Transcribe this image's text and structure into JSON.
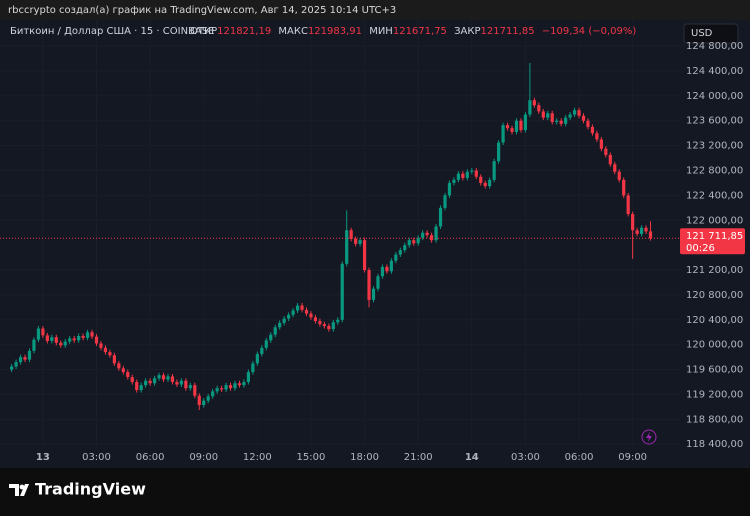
{
  "caption": "rbccrypto создал(а) график на TradingView.com, Авг 14, 2025 10:14 UTC+3",
  "brand": "TradingView",
  "chart_data": {
    "type": "candlestick",
    "symbol": "Биткоин / Доллар США · 15 · COINBASE",
    "legend": {
      "open_label": "ОТКР",
      "open": "121821,19",
      "high_label": "МАКС",
      "high": "121983,91",
      "low_label": "МИН",
      "low": "121671,75",
      "close_label": "ЗАКР",
      "close": "121711,85",
      "change": "−109,34 (−0,09%)"
    },
    "currency": "USD",
    "last_price_label": "121 711,85",
    "countdown": "00:26",
    "up_color": "#089981",
    "down_color": "#f23645",
    "grid": true,
    "xlim": [
      -2.4,
      35.65
    ],
    "ylim": [
      118050,
      124930
    ],
    "xticks": [
      {
        "value": 0,
        "label": "13"
      },
      {
        "value": 3,
        "label": "03:00"
      },
      {
        "value": 6,
        "label": "06:00"
      },
      {
        "value": 9,
        "label": "09:00"
      },
      {
        "value": 12,
        "label": "12:00"
      },
      {
        "value": 15,
        "label": "15:00"
      },
      {
        "value": 18,
        "label": "18:00"
      },
      {
        "value": 21,
        "label": "21:00"
      },
      {
        "value": 24,
        "label": "14"
      },
      {
        "value": 27,
        "label": "03:00"
      },
      {
        "value": 30,
        "label": "06:00"
      },
      {
        "value": 33,
        "label": "09:00"
      }
    ],
    "yticks": [
      {
        "value": 124800,
        "label": "124 800,00"
      },
      {
        "value": 124400,
        "label": "124 400,00"
      },
      {
        "value": 124000,
        "label": "124 000,00"
      },
      {
        "value": 123600,
        "label": "123 600,00"
      },
      {
        "value": 123200,
        "label": "123 200,00"
      },
      {
        "value": 122800,
        "label": "122 800,00"
      },
      {
        "value": 122400,
        "label": "122 400,00"
      },
      {
        "value": 122000,
        "label": "122 000,00"
      },
      {
        "value": 121200,
        "label": "121 200,00"
      },
      {
        "value": 120800,
        "label": "120 800,00"
      },
      {
        "value": 120400,
        "label": "120 400,00"
      },
      {
        "value": 120000,
        "label": "120 000,00"
      },
      {
        "value": 119600,
        "label": "119 600,00"
      },
      {
        "value": 119200,
        "label": "119 200,00"
      },
      {
        "value": 118800,
        "label": "118 800,00"
      },
      {
        "value": 118400,
        "label": "118 400,00"
      }
    ],
    "x": [
      -1.75,
      -1.5,
      -1.25,
      -1,
      -0.75,
      -0.5,
      -0.25,
      0,
      0.25,
      0.5,
      0.75,
      1,
      1.25,
      1.5,
      1.75,
      2,
      2.25,
      2.5,
      2.75,
      3,
      3.25,
      3.5,
      3.75,
      4,
      4.25,
      4.5,
      4.75,
      5,
      5.25,
      5.5,
      5.75,
      6,
      6.25,
      6.5,
      6.75,
      7,
      7.25,
      7.5,
      7.75,
      8,
      8.25,
      8.5,
      8.75,
      9,
      9.25,
      9.5,
      9.75,
      10,
      10.25,
      10.5,
      10.75,
      11,
      11.25,
      11.5,
      11.75,
      12,
      12.25,
      12.5,
      12.75,
      13,
      13.25,
      13.5,
      13.75,
      14,
      14.25,
      14.5,
      14.75,
      15,
      15.25,
      15.5,
      15.75,
      16,
      16.25,
      16.5,
      16.75,
      17,
      17.25,
      17.5,
      17.75,
      18,
      18.25,
      18.5,
      18.75,
      19,
      19.25,
      19.5,
      19.75,
      20,
      20.25,
      20.5,
      20.75,
      21,
      21.25,
      21.5,
      21.75,
      22,
      22.25,
      22.5,
      22.75,
      23,
      23.25,
      23.5,
      23.75,
      24,
      24.25,
      24.5,
      24.75,
      25,
      25.25,
      25.5,
      25.75,
      26,
      26.25,
      26.5,
      26.75,
      27,
      27.25,
      27.5,
      27.75,
      28,
      28.25,
      28.5,
      28.75,
      29,
      29.25,
      29.5,
      29.75,
      30,
      30.25,
      30.5,
      30.75,
      31,
      31.25,
      31.5,
      31.75,
      32,
      32.25,
      32.5,
      32.75,
      33,
      33.25,
      33.5,
      33.75,
      34
    ],
    "open": [
      119600,
      119650,
      119720,
      119800,
      119760,
      119900,
      120080,
      120260,
      120150,
      120060,
      120120,
      120030,
      119990,
      120050,
      120100,
      120070,
      120140,
      120110,
      120200,
      120130,
      120020,
      119950,
      119880,
      119830,
      119700,
      119620,
      119560,
      119480,
      119400,
      119270,
      119350,
      119420,
      119380,
      119460,
      119510,
      119440,
      119490,
      119400,
      119360,
      119420,
      119300,
      119350,
      119180,
      119030,
      119100,
      119170,
      119250,
      119300,
      119280,
      119350,
      119300,
      119380,
      119350,
      119400,
      119560,
      119700,
      119850,
      119950,
      120070,
      120160,
      120280,
      120350,
      120420,
      120480,
      120550,
      120630,
      120560,
      120500,
      120440,
      120380,
      120330,
      120300,
      120250,
      120360,
      120400,
      121300,
      121840,
      121700,
      121620,
      121680,
      121200,
      120720,
      120900,
      121100,
      121250,
      121180,
      121350,
      121450,
      121520,
      121600,
      121680,
      121630,
      121720,
      121800,
      121760,
      121680,
      121900,
      122200,
      122400,
      122600,
      122650,
      122750,
      122680,
      122780,
      122800,
      122700,
      122600,
      122550,
      122650,
      122950,
      123250,
      123530,
      123480,
      123420,
      123600,
      123450,
      123700,
      123930,
      123850,
      123750,
      123650,
      123720,
      123580,
      123600,
      123550,
      123650,
      123700,
      123770,
      123680,
      123600,
      123500,
      123400,
      123300,
      123150,
      123050,
      122900,
      122780,
      122650,
      122400,
      122100,
      121840,
      121780,
      121880,
      121821.19
    ],
    "high": [
      119690,
      119760,
      119840,
      119840,
      119940,
      120120,
      120300,
      120300,
      120190,
      120160,
      120160,
      120070,
      120090,
      120140,
      120140,
      120180,
      120180,
      120240,
      120240,
      120170,
      120060,
      119990,
      119920,
      119870,
      119740,
      119660,
      119600,
      119520,
      119440,
      119390,
      119460,
      119460,
      119500,
      119550,
      119550,
      119530,
      119530,
      119440,
      119460,
      119460,
      119390,
      119390,
      119220,
      119140,
      119210,
      119290,
      119340,
      119340,
      119390,
      119390,
      119420,
      119420,
      119440,
      119600,
      119740,
      119890,
      119990,
      120110,
      120200,
      120320,
      120390,
      120460,
      120520,
      120590,
      120670,
      120670,
      120600,
      120540,
      120480,
      120420,
      120370,
      120340,
      120400,
      120440,
      121340,
      122160,
      121880,
      121740,
      121720,
      121720,
      121240,
      120940,
      121140,
      121290,
      121290,
      121390,
      121490,
      121560,
      121640,
      121720,
      121720,
      121760,
      121840,
      121840,
      121800,
      121940,
      122240,
      122440,
      122640,
      122690,
      122790,
      122790,
      122820,
      122840,
      122840,
      122740,
      122640,
      122690,
      122990,
      123290,
      123570,
      123570,
      123520,
      123640,
      123640,
      123740,
      124530,
      123970,
      123890,
      123790,
      123760,
      123760,
      123640,
      123640,
      123690,
      123740,
      123810,
      123810,
      123720,
      123640,
      123540,
      123440,
      123340,
      123190,
      123090,
      122940,
      122820,
      122690,
      122440,
      122140,
      121880,
      121920,
      121920,
      121983.91
    ],
    "low": [
      119560,
      119610,
      119680,
      119720,
      119720,
      119860,
      120040,
      120110,
      120020,
      120020,
      119990,
      119950,
      119950,
      120010,
      120030,
      120030,
      120070,
      120070,
      120090,
      119980,
      119910,
      119840,
      119790,
      119660,
      119580,
      119520,
      119440,
      119360,
      119230,
      119230,
      119310,
      119340,
      119340,
      119420,
      119400,
      119400,
      119360,
      119320,
      119320,
      119260,
      119260,
      119140,
      118950,
      118990,
      119060,
      119130,
      119210,
      119240,
      119240,
      119260,
      119260,
      119310,
      119310,
      119360,
      119520,
      119660,
      119810,
      119910,
      120030,
      120120,
      120240,
      120310,
      120380,
      120440,
      120510,
      120520,
      120460,
      120400,
      120340,
      120290,
      120260,
      120210,
      120210,
      120320,
      120360,
      121260,
      121660,
      121580,
      121580,
      121160,
      120600,
      120680,
      120860,
      121060,
      121140,
      121140,
      121310,
      121410,
      121480,
      121560,
      121590,
      121590,
      121680,
      121720,
      121640,
      121640,
      121860,
      122160,
      122360,
      122560,
      122610,
      122640,
      122640,
      122740,
      122660,
      122560,
      122510,
      122510,
      122610,
      122910,
      123210,
      123440,
      123380,
      123380,
      123410,
      123410,
      123660,
      123810,
      123710,
      123610,
      123610,
      123540,
      123540,
      123510,
      123510,
      123610,
      123660,
      123640,
      123560,
      123460,
      123360,
      123260,
      123110,
      123010,
      122860,
      122740,
      122610,
      122360,
      122060,
      121380,
      121740,
      121740,
      121780,
      121671.75
    ],
    "close": [
      119650,
      119720,
      119800,
      119760,
      119900,
      120080,
      120260,
      120150,
      120060,
      120120,
      120030,
      119990,
      120050,
      120100,
      120070,
      120140,
      120110,
      120200,
      120130,
      120020,
      119950,
      119880,
      119830,
      119700,
      119620,
      119560,
      119480,
      119400,
      119270,
      119350,
      119420,
      119380,
      119460,
      119510,
      119440,
      119490,
      119400,
      119360,
      119420,
      119300,
      119350,
      119180,
      119030,
      119100,
      119170,
      119250,
      119300,
      119280,
      119350,
      119300,
      119380,
      119350,
      119400,
      119560,
      119700,
      119850,
      119950,
      120070,
      120160,
      120280,
      120350,
      120420,
      120480,
      120550,
      120630,
      120560,
      120500,
      120440,
      120380,
      120330,
      120300,
      120250,
      120360,
      120400,
      121300,
      121840,
      121700,
      121620,
      121680,
      121200,
      120720,
      120900,
      121100,
      121250,
      121180,
      121350,
      121450,
      121520,
      121600,
      121680,
      121630,
      121720,
      121800,
      121760,
      121680,
      121900,
      122200,
      122400,
      122600,
      122650,
      122750,
      122680,
      122780,
      122800,
      122700,
      122600,
      122550,
      122650,
      122950,
      123250,
      123530,
      123480,
      123420,
      123600,
      123450,
      123700,
      123930,
      123850,
      123750,
      123650,
      123720,
      123580,
      123600,
      123550,
      123650,
      123700,
      123770,
      123680,
      123600,
      123500,
      123400,
      123300,
      123150,
      123050,
      122900,
      122780,
      122650,
      122400,
      122100,
      121840,
      121780,
      121880,
      121820,
      121711.85
    ]
  }
}
